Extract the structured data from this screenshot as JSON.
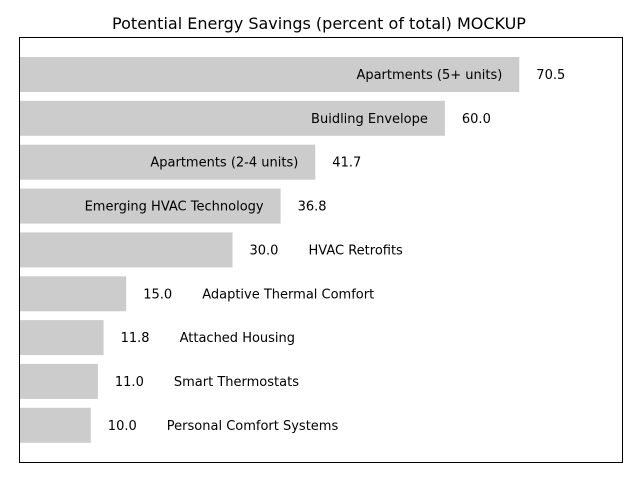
{
  "chart_data": {
    "type": "bar",
    "orientation": "horizontal",
    "title": "Potential Energy Savings (percent of total) MOCKUP",
    "xlabel": "",
    "ylabel": "",
    "xlim": [
      0,
      85
    ],
    "grid": false,
    "bar_color": "#cccccc",
    "categories": [
      "Apartments (5+ units)",
      "Buidling Envelope",
      "Apartments (2-4 units)",
      "Emerging HVAC Technology",
      "HVAC Retrofits",
      "Adaptive Thermal Comfort",
      "Attached Housing",
      "Smart Thermostats",
      "Personal Comfort Systems"
    ],
    "values": [
      70.5,
      60.0,
      41.7,
      36.8,
      30.0,
      15.0,
      11.8,
      11.0,
      10.0
    ],
    "value_labels": [
      "70.5",
      "60.0",
      "41.7",
      "36.8",
      "30.0",
      "15.0",
      "11.8",
      "11.0",
      "10.0"
    ]
  }
}
